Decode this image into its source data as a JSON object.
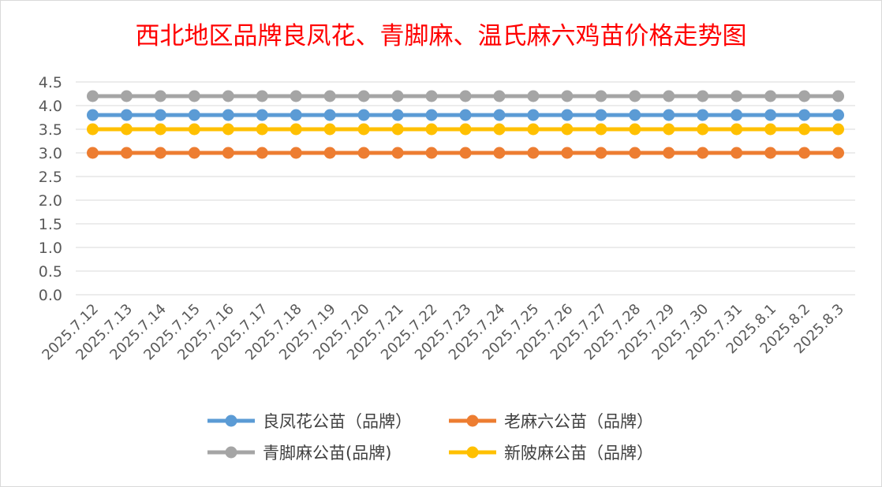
{
  "chart_data": {
    "type": "line",
    "title": "西北地区品牌良凤花、青脚麻、温氏麻六鸡苗价格走势图",
    "xlabel": "",
    "ylabel": "",
    "ylim": [
      0,
      4.5
    ],
    "ytick_labels": [
      "0.0",
      "0.5",
      "1.0",
      "1.5",
      "2.0",
      "2.5",
      "3.0",
      "3.5",
      "4.0",
      "4.5"
    ],
    "grid": true,
    "legend_position": "bottom",
    "categories": [
      "2025.7.12",
      "2025.7.13",
      "2025.7.14",
      "2025.7.15",
      "2025.7.16",
      "2025.7.17",
      "2025.7.18",
      "2025.7.19",
      "2025.7.20",
      "2025.7.21",
      "2025.7.22",
      "2025.7.23",
      "2025.7.24",
      "2025.7.25",
      "2025.7.26",
      "2025.7.27",
      "2025.7.28",
      "2025.7.29",
      "2025.7.30",
      "2025.7.31",
      "2025.8.1",
      "2025.8.2",
      "2025.8.3"
    ],
    "series": [
      {
        "name": "良凤花公苗（品牌）",
        "color": "#5b9bd5",
        "values": [
          3.8,
          3.8,
          3.8,
          3.8,
          3.8,
          3.8,
          3.8,
          3.8,
          3.8,
          3.8,
          3.8,
          3.8,
          3.8,
          3.8,
          3.8,
          3.8,
          3.8,
          3.8,
          3.8,
          3.8,
          3.8,
          3.8,
          3.8
        ]
      },
      {
        "name": "老麻六公苗（品牌）",
        "color": "#ed7d31",
        "values": [
          3.0,
          3.0,
          3.0,
          3.0,
          3.0,
          3.0,
          3.0,
          3.0,
          3.0,
          3.0,
          3.0,
          3.0,
          3.0,
          3.0,
          3.0,
          3.0,
          3.0,
          3.0,
          3.0,
          3.0,
          3.0,
          3.0,
          3.0
        ]
      },
      {
        "name": "青脚麻公苗(品牌)",
        "color": "#a5a5a5",
        "values": [
          4.2,
          4.2,
          4.2,
          4.2,
          4.2,
          4.2,
          4.2,
          4.2,
          4.2,
          4.2,
          4.2,
          4.2,
          4.2,
          4.2,
          4.2,
          4.2,
          4.2,
          4.2,
          4.2,
          4.2,
          4.2,
          4.2,
          4.2
        ]
      },
      {
        "name": "新陂麻公苗（品牌）",
        "color": "#ffc000",
        "values": [
          3.5,
          3.5,
          3.5,
          3.5,
          3.5,
          3.5,
          3.5,
          3.5,
          3.5,
          3.5,
          3.5,
          3.5,
          3.5,
          3.5,
          3.5,
          3.5,
          3.5,
          3.5,
          3.5,
          3.5,
          3.5,
          3.5,
          3.5
        ]
      }
    ]
  }
}
